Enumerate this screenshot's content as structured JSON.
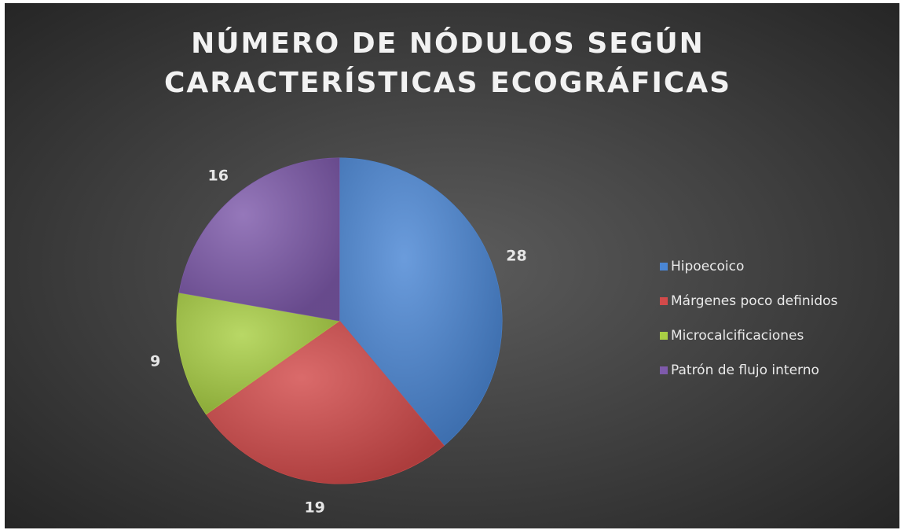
{
  "chart_data": {
    "type": "pie",
    "title": [
      "NÚMERO DE NÓDULOS SEGÚN",
      "CARACTERÍSTICAS ECOGRÁFICAS"
    ],
    "categories": [
      "Hipoecoico",
      "Márgenes poco definidos",
      "Microcalcificaciones",
      "Patrón de flujo interno"
    ],
    "values": [
      28,
      19,
      9,
      16
    ],
    "colors": [
      "#4a86d4",
      "#d24a4a",
      "#a9cf44",
      "#7e5aab"
    ],
    "legend": "right"
  }
}
